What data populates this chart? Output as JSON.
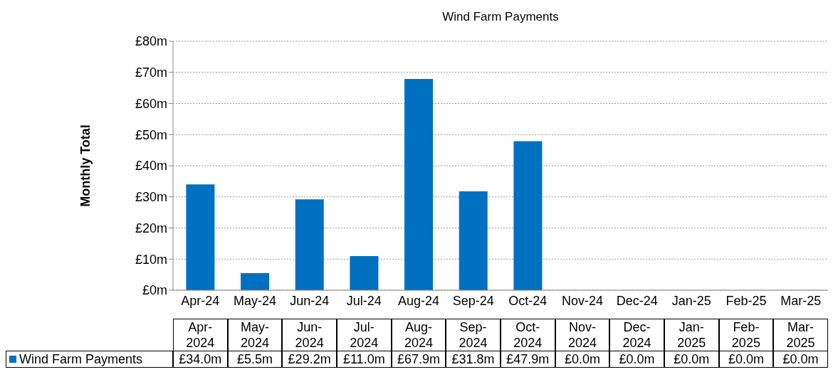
{
  "chart_data": {
    "type": "bar",
    "title": "Wind Farm Payments",
    "ylabel": "Monthly Total",
    "categories": [
      "Apr-24",
      "May-24",
      "Jun-24",
      "Jul-24",
      "Aug-24",
      "Sep-24",
      "Oct-24",
      "Nov-24",
      "Dec-24",
      "Jan-25",
      "Feb-25",
      "Mar-25"
    ],
    "series": [
      {
        "name": "Wind Farm Payments",
        "color": "#0070c0",
        "values": [
          34.0,
          5.5,
          29.2,
          11.0,
          67.9,
          31.8,
          47.9,
          0.0,
          0.0,
          0.0,
          0.0,
          0.0
        ],
        "value_labels": [
          "£34.0m",
          "£5.5m",
          "£29.2m",
          "£11.0m",
          "£67.9m",
          "£31.8m",
          "£47.9m",
          "£0.0m",
          "£0.0m",
          "£0.0m",
          "£0.0m",
          "£0.0m"
        ]
      }
    ],
    "ylim": [
      0,
      80
    ],
    "yticks": [
      {
        "value": 0,
        "label": "£0m"
      },
      {
        "value": 10,
        "label": "£10m"
      },
      {
        "value": 20,
        "label": "£20m"
      },
      {
        "value": 30,
        "label": "£30m"
      },
      {
        "value": 40,
        "label": "£40m"
      },
      {
        "value": 50,
        "label": "£50m"
      },
      {
        "value": 60,
        "label": "£60m"
      },
      {
        "value": 70,
        "label": "£70m"
      },
      {
        "value": 80,
        "label": "£80m"
      }
    ],
    "grid": "y",
    "legend": "bottom",
    "annotations": [
      "Apr-\n2024",
      "May-\n2024",
      "Jun-\n2024",
      "Jul-\n2024",
      "Aug-\n2024",
      "Sep-\n2024",
      "Oct-\n2024",
      "Nov-\n2024",
      "Dec-\n2024",
      "Jan-\n2025",
      "Feb-\n2025",
      "Mar-\n2025"
    ]
  }
}
